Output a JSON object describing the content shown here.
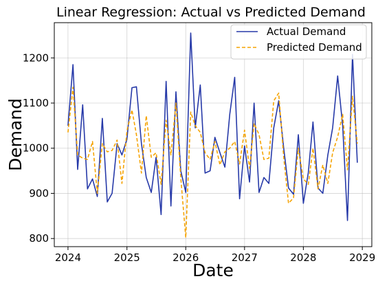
{
  "chart_data": {
    "type": "line",
    "title": "Linear Regression: Actual vs Predicted Demand",
    "xlabel": "Date",
    "ylabel": "Demand",
    "x_ticks": [
      "2024",
      "2025",
      "2026",
      "2027",
      "2028",
      "2029"
    ],
    "y_ticks": [
      "800",
      "900",
      "1000",
      "1100",
      "1200"
    ],
    "xlim": [
      "2023-10-08",
      "2029-03-01"
    ],
    "ylim": [
      782,
      1278
    ],
    "grid": true,
    "legend_position": "top-right",
    "dates": [
      "2024-01",
      "2024-02",
      "2024-03",
      "2024-04",
      "2024-05",
      "2024-06",
      "2024-07",
      "2024-08",
      "2024-09",
      "2024-10",
      "2024-11",
      "2024-12",
      "2025-01",
      "2025-02",
      "2025-03",
      "2025-04",
      "2025-05",
      "2025-06",
      "2025-07",
      "2025-08",
      "2025-09",
      "2025-10",
      "2025-11",
      "2025-12",
      "2026-01",
      "2026-02",
      "2026-03",
      "2026-04",
      "2026-05",
      "2026-06",
      "2026-07",
      "2026-08",
      "2026-09",
      "2026-10",
      "2026-11",
      "2026-12",
      "2027-01",
      "2027-02",
      "2027-03",
      "2027-04",
      "2027-05",
      "2027-06",
      "2027-07",
      "2027-08",
      "2027-09",
      "2027-10",
      "2027-11",
      "2027-12",
      "2028-01",
      "2028-02",
      "2028-03",
      "2028-04",
      "2028-05",
      "2028-06",
      "2028-07",
      "2028-08",
      "2028-09",
      "2028-10",
      "2028-11",
      "2028-12"
    ],
    "series": [
      {
        "name": "Actual Demand",
        "color": "#2639a8",
        "style": "solid",
        "values": [
          1050,
          1185,
          953,
          1096,
          910,
          932,
          893,
          1066,
          881,
          900,
          1010,
          985,
          1020,
          1134,
          1136,
          1010,
          935,
          902,
          980,
          853,
          1148,
          872,
          1125,
          950,
          902,
          1255,
          1045,
          1140,
          945,
          950,
          1024,
          990,
          958,
          1075,
          1157,
          888,
          1005,
          925,
          1100,
          902,
          935,
          922,
          1045,
          1105,
          1000,
          912,
          898,
          1030,
          878,
          946,
          1058,
          912,
          900,
          985,
          1045,
          1160,
          1050,
          840,
          1208,
          968
        ]
      },
      {
        "name": "Predicted Demand",
        "color": "#f5a300",
        "style": "dashed",
        "values": [
          1035,
          1135,
          985,
          978,
          975,
          1015,
          900,
          1010,
          992,
          995,
          1018,
          922,
          1038,
          1085,
          1030,
          945,
          1072,
          980,
          990,
          920,
          1062,
          985,
          1100,
          935,
          802,
          1080,
          1050,
          1035,
          990,
          975,
          1015,
          963,
          992,
          1000,
          1015,
          965,
          1040,
          955,
          1055,
          1030,
          975,
          978,
          1105,
          1122,
          980,
          878,
          890,
          1000,
          932,
          920,
          1000,
          910,
          963,
          922,
          990,
          1025,
          1075,
          952,
          1115,
          1010
        ]
      }
    ]
  }
}
